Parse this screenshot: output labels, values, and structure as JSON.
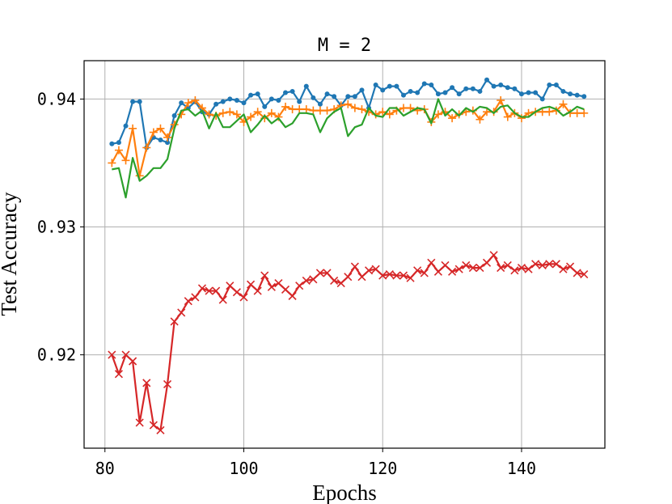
{
  "chart_data": {
    "type": "line",
    "title": "M = 2",
    "xlabel": "Epochs",
    "ylabel": "Test Accuracy",
    "xlim": [
      77,
      152
    ],
    "ylim": [
      0.9127,
      0.943
    ],
    "xticks": [
      80,
      100,
      120,
      140
    ],
    "yticks": [
      0.92,
      0.93,
      0.94
    ],
    "xtick_labels": [
      "80",
      "100",
      "120",
      "140"
    ],
    "ytick_labels": [
      "0.92",
      "0.93",
      "0.94"
    ],
    "grid": true,
    "legend": null,
    "x": [
      81,
      82,
      83,
      84,
      85,
      86,
      87,
      88,
      89,
      90,
      91,
      92,
      93,
      94,
      95,
      96,
      97,
      98,
      99,
      100,
      101,
      102,
      103,
      104,
      105,
      106,
      107,
      108,
      109,
      110,
      111,
      112,
      113,
      114,
      115,
      116,
      117,
      118,
      119,
      120,
      121,
      122,
      123,
      124,
      125,
      126,
      127,
      128,
      129,
      130,
      131,
      132,
      133,
      134,
      135,
      136,
      137,
      138,
      139,
      140,
      141,
      142,
      143,
      144,
      145,
      146,
      147,
      148,
      149
    ],
    "series": [
      {
        "color": "#1f77b4",
        "marker": "dot",
        "values": [
          0.9365,
          0.9366,
          0.9379,
          0.9398,
          0.9398,
          0.9362,
          0.937,
          0.9368,
          0.9366,
          0.9387,
          0.9397,
          0.9393,
          0.9398,
          0.939,
          0.9388,
          0.9396,
          0.9398,
          0.94,
          0.9399,
          0.9397,
          0.9403,
          0.9404,
          0.9394,
          0.94,
          0.9399,
          0.9405,
          0.9406,
          0.9398,
          0.941,
          0.9401,
          0.9396,
          0.9404,
          0.9402,
          0.9395,
          0.9402,
          0.9402,
          0.9407,
          0.9393,
          0.9411,
          0.9407,
          0.941,
          0.941,
          0.9403,
          0.9406,
          0.9405,
          0.9412,
          0.9411,
          0.9404,
          0.9405,
          0.9409,
          0.9404,
          0.9408,
          0.9408,
          0.9406,
          0.9415,
          0.941,
          0.9411,
          0.9409,
          0.9408,
          0.9404,
          0.9405,
          0.9405,
          0.94,
          0.9411,
          0.9411,
          0.9406,
          0.9404,
          0.9403,
          0.9402
        ]
      },
      {
        "color": "#ff7f0e",
        "marker": "plus",
        "values": [
          0.935,
          0.936,
          0.9352,
          0.9377,
          0.934,
          0.9362,
          0.9374,
          0.9377,
          0.937,
          0.938,
          0.9388,
          0.9397,
          0.9399,
          0.9393,
          0.9388,
          0.9387,
          0.9389,
          0.939,
          0.9388,
          0.9382,
          0.9386,
          0.939,
          0.9385,
          0.9389,
          0.9386,
          0.9394,
          0.9392,
          0.9392,
          0.9392,
          0.9391,
          0.9391,
          0.9391,
          0.9392,
          0.9395,
          0.9396,
          0.9393,
          0.9392,
          0.939,
          0.9388,
          0.939,
          0.9388,
          0.9391,
          0.9393,
          0.9393,
          0.9391,
          0.9392,
          0.9382,
          0.9388,
          0.939,
          0.9385,
          0.9388,
          0.939,
          0.9391,
          0.9384,
          0.939,
          0.939,
          0.9399,
          0.9386,
          0.9389,
          0.9385,
          0.9389,
          0.939,
          0.939,
          0.939,
          0.9391,
          0.9396,
          0.9389,
          0.9389,
          0.9389
        ]
      },
      {
        "color": "#2ca02c",
        "marker": "none",
        "values": [
          0.9345,
          0.9346,
          0.9323,
          0.9354,
          0.9336,
          0.934,
          0.9346,
          0.9346,
          0.9353,
          0.9377,
          0.9391,
          0.9392,
          0.9387,
          0.9391,
          0.9377,
          0.9389,
          0.9378,
          0.9378,
          0.9383,
          0.9388,
          0.9374,
          0.938,
          0.9387,
          0.9381,
          0.9385,
          0.9378,
          0.9381,
          0.9389,
          0.9389,
          0.9388,
          0.9374,
          0.9385,
          0.939,
          0.9393,
          0.9371,
          0.9378,
          0.938,
          0.9393,
          0.9387,
          0.9386,
          0.9393,
          0.9393,
          0.9387,
          0.939,
          0.9393,
          0.9392,
          0.9381,
          0.94,
          0.9387,
          0.9392,
          0.9387,
          0.9393,
          0.939,
          0.9394,
          0.9393,
          0.9389,
          0.9394,
          0.9395,
          0.9389,
          0.9386,
          0.9386,
          0.939,
          0.9393,
          0.9394,
          0.9392,
          0.9387,
          0.939,
          0.9394,
          0.9392
        ]
      },
      {
        "color": "#d62728",
        "marker": "x",
        "values": [
          0.92,
          0.9185,
          0.92,
          0.9195,
          0.9147,
          0.9178,
          0.9145,
          0.9141,
          0.9177,
          0.9226,
          0.9233,
          0.9242,
          0.9245,
          0.9252,
          0.925,
          0.925,
          0.9243,
          0.9254,
          0.9249,
          0.9245,
          0.9255,
          0.925,
          0.9262,
          0.9253,
          0.9256,
          0.9251,
          0.9246,
          0.9254,
          0.9258,
          0.9259,
          0.9264,
          0.9264,
          0.9258,
          0.9256,
          0.9261,
          0.9269,
          0.9261,
          0.9266,
          0.9267,
          0.9262,
          0.9263,
          0.9262,
          0.9262,
          0.926,
          0.9266,
          0.9264,
          0.9272,
          0.9265,
          0.927,
          0.9265,
          0.9267,
          0.927,
          0.9268,
          0.9268,
          0.9272,
          0.9278,
          0.9268,
          0.927,
          0.9266,
          0.9268,
          0.9267,
          0.9271,
          0.927,
          0.9271,
          0.9271,
          0.9267,
          0.9269,
          0.9264,
          0.9263
        ]
      }
    ]
  }
}
